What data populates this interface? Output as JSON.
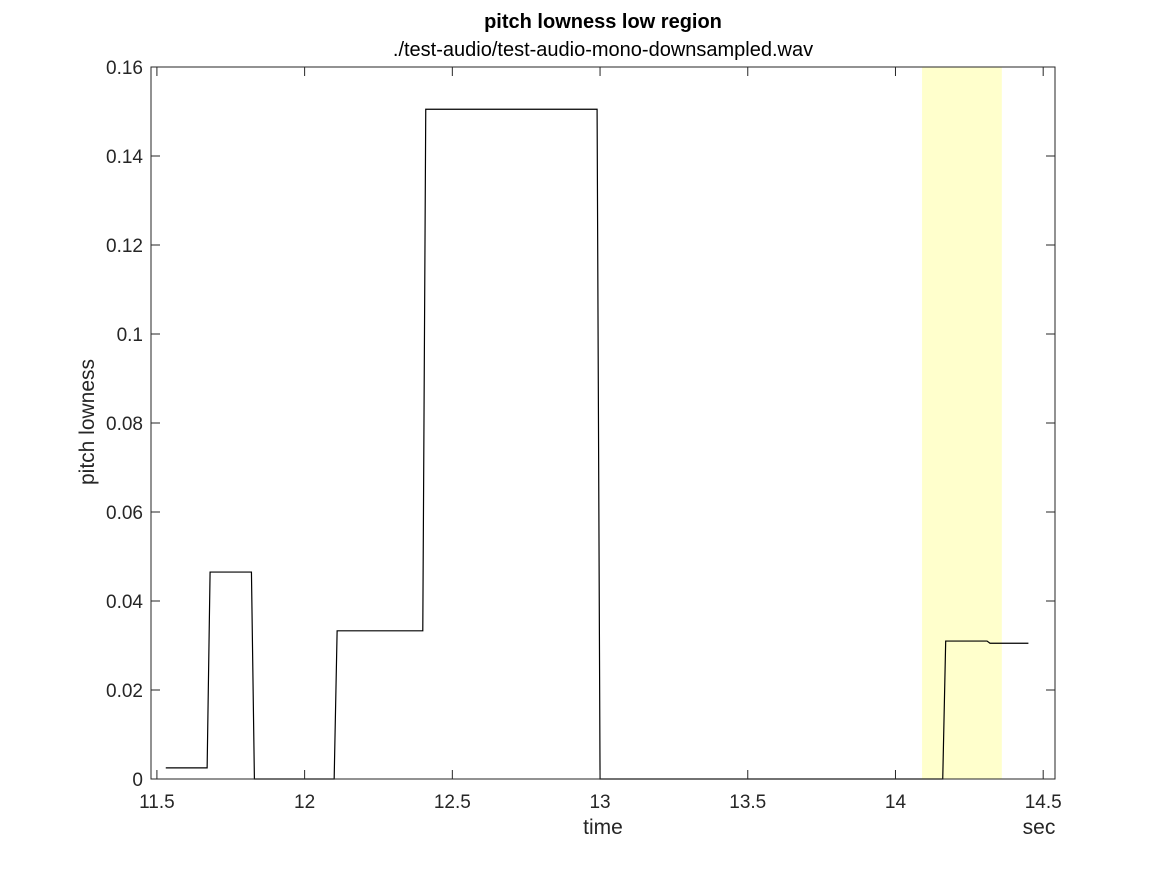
{
  "chart_data": {
    "type": "line",
    "title": "pitch lowness low region",
    "subtitle": "./test-audio/test-audio-mono-downsampled.wav",
    "xlabel": "time",
    "ylabel": "pitch lowness",
    "x_unit_label": "sec",
    "xlim": [
      11.48,
      14.54
    ],
    "ylim": [
      0,
      0.16
    ],
    "xticks": [
      11.5,
      12,
      12.5,
      13,
      13.5,
      14,
      14.5
    ],
    "xtick_labels": [
      "11.5",
      "12",
      "12.5",
      "13",
      "13.5",
      "14",
      "14.5"
    ],
    "yticks": [
      0,
      0.02,
      0.04,
      0.06,
      0.08,
      0.1,
      0.12,
      0.14,
      0.16
    ],
    "ytick_labels": [
      "0",
      "0.02",
      "0.04",
      "0.06",
      "0.08",
      "0.1",
      "0.12",
      "0.14",
      "0.16"
    ],
    "grid": false,
    "highlight_region": {
      "x_start": 14.09,
      "x_end": 14.36,
      "color": "#ffffcc"
    },
    "line_color": "#000000",
    "series": [
      {
        "points": [
          [
            11.53,
            0.0025
          ],
          [
            11.67,
            0.0025
          ],
          [
            11.68,
            0.0465
          ],
          [
            11.82,
            0.0465
          ],
          [
            11.83,
            0.0
          ],
          [
            12.1,
            0.0
          ],
          [
            12.11,
            0.0333
          ],
          [
            12.4,
            0.0333
          ],
          [
            12.41,
            0.1505
          ],
          [
            12.99,
            0.1505
          ],
          [
            13.0,
            0.0
          ],
          [
            14.16,
            0.0
          ],
          [
            14.17,
            0.031
          ],
          [
            14.31,
            0.031
          ],
          [
            14.32,
            0.0305
          ],
          [
            14.45,
            0.0305
          ]
        ]
      }
    ]
  }
}
